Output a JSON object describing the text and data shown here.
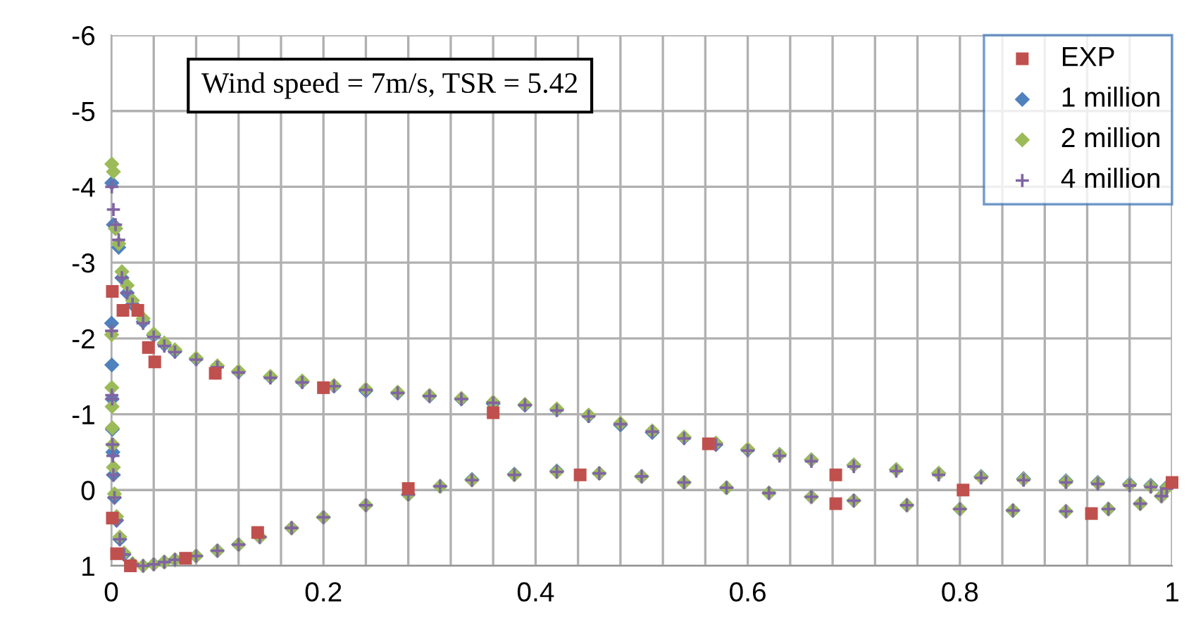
{
  "chart_data": {
    "type": "scatter",
    "xlim": [
      0,
      1
    ],
    "xticks": [
      0,
      {
        "value": 0.04,
        "label": null
      },
      {
        "value": 0.08,
        "label": null
      },
      {
        "value": 0.12,
        "label": null
      },
      {
        "value": 0.16,
        "label": null
      },
      0.2,
      {
        "value": 0.24,
        "label": null
      },
      {
        "value": 0.28,
        "label": null
      },
      {
        "value": 0.32,
        "label": null
      },
      {
        "value": 0.36,
        "label": null
      },
      0.4,
      {
        "value": 0.44,
        "label": null
      },
      {
        "value": 0.48,
        "label": null
      },
      {
        "value": 0.52,
        "label": null
      },
      {
        "value": 0.56,
        "label": null
      },
      0.6,
      {
        "value": 0.64,
        "label": null
      },
      {
        "value": 0.68,
        "label": null
      },
      {
        "value": 0.72,
        "label": null
      },
      {
        "value": 0.76,
        "label": null
      },
      0.8,
      {
        "value": 0.84,
        "label": null
      },
      {
        "value": 0.88,
        "label": null
      },
      {
        "value": 0.92,
        "label": null
      },
      {
        "value": 0.96,
        "label": null
      },
      1
    ],
    "ylim": [
      1,
      -6
    ],
    "yticks": [
      -6,
      -5,
      -4,
      -3,
      -2,
      -1,
      0,
      1
    ],
    "grid": true,
    "legend": "top right",
    "annotations": [
      "Wind speed = 7m/s, TSR = 5.42"
    ],
    "series": [
      {
        "name": "EXP",
        "color": "#c0504d",
        "marker": "square",
        "x": [
          0.001,
          0.011,
          0.025,
          0.035,
          0.041,
          0.098,
          0.2,
          0.36,
          0.563,
          0.683,
          0.803,
          1.0,
          0.001,
          0.005,
          0.018,
          0.07,
          0.138,
          0.28,
          0.442,
          0.683,
          0.924
        ],
        "values": [
          -2.62,
          -2.37,
          -2.37,
          -1.88,
          -1.69,
          -1.54,
          -1.35,
          -1.02,
          -0.61,
          -0.2,
          0.0,
          -0.1,
          0.37,
          0.84,
          1.0,
          0.9,
          0.56,
          -0.02,
          -0.2,
          0.18,
          0.31
        ]
      },
      {
        "name": "1 million",
        "color": "#4f81bd",
        "marker": "diamond",
        "x": [
          0.0005,
          0.002,
          0.004,
          0.007,
          0.01,
          0.015,
          0.02,
          0.03,
          0.04,
          0.05,
          0.06,
          0.08,
          0.12,
          0.15,
          0.18,
          0.21,
          0.24,
          0.27,
          0.3,
          0.33,
          0.36,
          0.39,
          0.42,
          0.45,
          0.48,
          0.51,
          0.54,
          0.57,
          0.6,
          0.63,
          0.66,
          0.7,
          0.74,
          0.78,
          0.82,
          0.86,
          0.9,
          0.93,
          0.96,
          0.98,
          0.995,
          0.0003,
          0.0005,
          0.0008,
          0.001,
          0.0015,
          0.002,
          0.003,
          0.005,
          0.008,
          0.012,
          0.05,
          0.06,
          0.08,
          0.1,
          0.12,
          0.14,
          0.17,
          0.2,
          0.24,
          0.28,
          0.31,
          0.34,
          0.38,
          0.42,
          0.46,
          0.5,
          0.54,
          0.58,
          0.62,
          0.66,
          0.7,
          0.75,
          0.8,
          0.85,
          0.9,
          0.94,
          0.97,
          0.99
        ],
        "values": [
          -4.05,
          -3.5,
          -3.45,
          -3.2,
          -2.8,
          -2.6,
          -2.45,
          -2.22,
          -2.04,
          -1.92,
          -1.83,
          -1.73,
          -1.56,
          -1.49,
          -1.43,
          -1.37,
          -1.31,
          -1.28,
          -1.24,
          -1.2,
          -1.14,
          -1.12,
          -1.06,
          -0.98,
          -0.86,
          -0.76,
          -0.69,
          -0.6,
          -0.53,
          -0.47,
          -0.4,
          -0.33,
          -0.27,
          -0.22,
          -0.18,
          -0.15,
          -0.12,
          -0.1,
          -0.08,
          -0.06,
          -0.04,
          -2.2,
          -1.65,
          -1.2,
          -0.8,
          -0.5,
          -0.2,
          0.1,
          0.4,
          0.65,
          0.85,
          0.95,
          0.92,
          0.87,
          0.8,
          0.72,
          0.62,
          0.5,
          0.36,
          0.2,
          0.06,
          -0.05,
          -0.14,
          -0.21,
          -0.25,
          -0.22,
          -0.18,
          -0.1,
          -0.03,
          0.04,
          0.09,
          0.14,
          0.2,
          0.25,
          0.27,
          0.28,
          0.25,
          0.18,
          0.08
        ]
      },
      {
        "name": "2 million",
        "color": "#9bbb59",
        "marker": "diamond",
        "x": [
          0.0005,
          0.002,
          0.004,
          0.007,
          0.01,
          0.015,
          0.02,
          0.03,
          0.04,
          0.05,
          0.06,
          0.08,
          0.1,
          0.12,
          0.15,
          0.18,
          0.21,
          0.24,
          0.27,
          0.3,
          0.33,
          0.36,
          0.39,
          0.42,
          0.45,
          0.48,
          0.51,
          0.54,
          0.57,
          0.6,
          0.63,
          0.66,
          0.7,
          0.74,
          0.78,
          0.82,
          0.86,
          0.9,
          0.93,
          0.96,
          0.98,
          0.995,
          0.0003,
          0.0005,
          0.0008,
          0.001,
          0.0015,
          0.002,
          0.003,
          0.005,
          0.008,
          0.012,
          0.02,
          0.03,
          0.04,
          0.05,
          0.06,
          0.08,
          0.1,
          0.12,
          0.14,
          0.17,
          0.2,
          0.24,
          0.28,
          0.31,
          0.34,
          0.38,
          0.42,
          0.46,
          0.5,
          0.54,
          0.58,
          0.62,
          0.66,
          0.7,
          0.75,
          0.8,
          0.85,
          0.9,
          0.94,
          0.97,
          0.99
        ],
        "values": [
          -4.3,
          -4.2,
          -3.45,
          -3.25,
          -2.88,
          -2.7,
          -2.5,
          -2.26,
          -2.06,
          -1.94,
          -1.85,
          -1.74,
          -1.64,
          -1.57,
          -1.5,
          -1.44,
          -1.38,
          -1.33,
          -1.29,
          -1.25,
          -1.21,
          -1.16,
          -1.13,
          -1.07,
          -0.99,
          -0.88,
          -0.78,
          -0.7,
          -0.62,
          -0.54,
          -0.47,
          -0.4,
          -0.33,
          -0.27,
          -0.22,
          -0.17,
          -0.14,
          -0.11,
          -0.09,
          -0.07,
          -0.05,
          -0.03,
          -2.05,
          -1.35,
          -1.1,
          -0.82,
          -0.6,
          -0.3,
          0.05,
          0.35,
          0.62,
          0.83,
          0.97,
          1.0,
          0.98,
          0.95,
          0.92,
          0.87,
          0.8,
          0.72,
          0.62,
          0.5,
          0.36,
          0.2,
          0.06,
          -0.05,
          -0.13,
          -0.2,
          -0.24,
          -0.22,
          -0.18,
          -0.1,
          -0.03,
          0.04,
          0.09,
          0.14,
          0.2,
          0.25,
          0.27,
          0.28,
          0.25,
          0.18,
          0.08
        ]
      },
      {
        "name": "4 million",
        "color": "#8064a2",
        "marker": "cross",
        "x": [
          0.0005,
          0.002,
          0.004,
          0.007,
          0.01,
          0.015,
          0.02,
          0.03,
          0.04,
          0.05,
          0.06,
          0.08,
          0.1,
          0.12,
          0.15,
          0.18,
          0.21,
          0.24,
          0.27,
          0.3,
          0.33,
          0.36,
          0.39,
          0.42,
          0.45,
          0.48,
          0.51,
          0.54,
          0.57,
          0.6,
          0.63,
          0.66,
          0.7,
          0.74,
          0.78,
          0.82,
          0.86,
          0.9,
          0.93,
          0.96,
          0.98,
          0.995,
          0.0003,
          0.0005,
          0.0008,
          0.001,
          0.0015,
          0.002,
          0.003,
          0.005,
          0.008,
          0.012,
          0.02,
          0.03,
          0.04,
          0.05,
          0.06,
          0.08,
          0.1,
          0.12,
          0.14,
          0.17,
          0.2,
          0.24,
          0.28,
          0.31,
          0.34,
          0.38,
          0.42,
          0.46,
          0.5,
          0.54,
          0.58,
          0.62,
          0.66,
          0.7,
          0.75,
          0.8,
          0.85,
          0.9,
          0.94,
          0.97,
          0.99
        ],
        "values": [
          -4.0,
          -3.7,
          -3.5,
          -3.3,
          -2.8,
          -2.6,
          -2.45,
          -2.2,
          -2.02,
          -1.9,
          -1.82,
          -1.72,
          -1.62,
          -1.55,
          -1.48,
          -1.42,
          -1.37,
          -1.32,
          -1.28,
          -1.24,
          -1.2,
          -1.15,
          -1.12,
          -1.05,
          -0.97,
          -0.87,
          -0.77,
          -0.68,
          -0.6,
          -0.52,
          -0.45,
          -0.38,
          -0.31,
          -0.25,
          -0.2,
          -0.16,
          -0.13,
          -0.1,
          -0.08,
          -0.06,
          -0.04,
          -0.02,
          -2.1,
          -1.25,
          -1.2,
          -0.6,
          -0.45,
          -0.2,
          0.1,
          0.4,
          0.65,
          0.85,
          0.98,
          1.0,
          0.98,
          0.95,
          0.92,
          0.87,
          0.8,
          0.72,
          0.62,
          0.5,
          0.36,
          0.2,
          0.06,
          -0.05,
          -0.13,
          -0.2,
          -0.24,
          -0.22,
          -0.18,
          -0.1,
          -0.03,
          0.04,
          0.09,
          0.14,
          0.2,
          0.25,
          0.27,
          0.28,
          0.25,
          0.18,
          0.08
        ]
      }
    ]
  }
}
